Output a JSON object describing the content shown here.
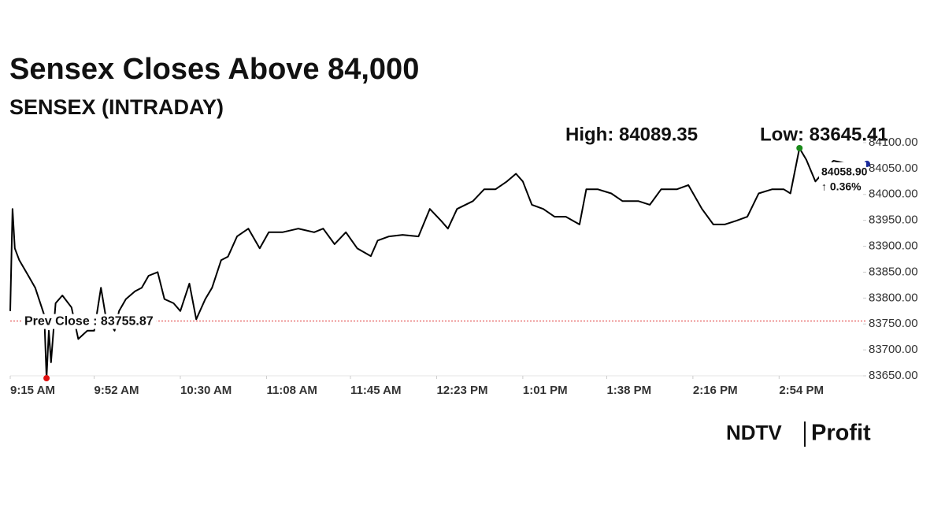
{
  "chart_data": {
    "type": "line",
    "title": "Sensex Closes Above 84,000",
    "subtitle": "SENSEX (INTRADAY)",
    "high": {
      "value": 84089.35,
      "label": "High: 84089.35"
    },
    "low": {
      "value": 83645.41,
      "label": "Low: 83645.41"
    },
    "prev_close": {
      "value": 83755.87,
      "label": "Prev Close : 83755.87"
    },
    "last": {
      "value": 84058.9,
      "label": "84058.90"
    },
    "change": {
      "value": 0.36,
      "label": "↑ 0.36%"
    },
    "color": "#000000",
    "x": [
      0,
      1,
      2,
      4,
      8,
      11,
      15,
      16,
      17,
      18,
      20,
      23,
      27,
      30,
      34,
      37,
      40,
      42,
      46,
      48,
      51,
      55,
      58,
      61,
      65,
      68,
      72,
      75,
      79,
      82,
      86,
      89,
      93,
      96,
      100,
      105,
      110,
      114,
      120,
      127,
      134,
      138,
      143,
      148,
      153,
      159,
      162,
      167,
      173,
      180,
      185,
      190,
      193,
      197,
      204,
      209,
      214,
      219,
      223,
      226,
      230,
      235,
      240,
      245,
      251,
      254,
      259,
      265,
      270,
      277,
      282,
      287,
      294,
      299,
      305,
      310,
      315,
      320,
      325,
      330,
      336,
      341,
      344,
      348,
      351,
      355,
      363,
      369
    ],
    "values": [
      83775,
      83972,
      83896,
      83873,
      83843,
      83820,
      83767,
      83645.41,
      83737,
      83676,
      83790,
      83805,
      83782,
      83721,
      83737,
      83737,
      83820,
      83767,
      83737,
      83775,
      83798,
      83813,
      83820,
      83843,
      83850,
      83798,
      83790,
      83775,
      83828,
      83759,
      83798,
      83820,
      83873,
      83880,
      83919,
      83934,
      83896,
      83927,
      83927,
      83934,
      83927,
      83934,
      83904,
      83927,
      83896,
      83881,
      83911,
      83919,
      83922,
      83919,
      83972,
      83949,
      83934,
      83972,
      83987,
      84010,
      84010,
      84025,
      84040,
      84025,
      83980,
      83972,
      83957,
      83957,
      83942,
      84010,
      84010,
      84002,
      83987,
      83987,
      83980,
      84010,
      84010,
      84018,
      83972,
      83942,
      83942,
      83949,
      83957,
      84002,
      84010,
      84010,
      84002,
      84089.35,
      84067,
      84025,
      84065,
      84058.9
    ],
    "xlim": [
      0,
      375
    ],
    "xticks": [
      {
        "value": 0,
        "label": "9:15 AM"
      },
      {
        "value": 37,
        "label": "9:52 AM"
      },
      {
        "value": 75,
        "label": "10:30 AM"
      },
      {
        "value": 113,
        "label": "11:08 AM"
      },
      {
        "value": 150,
        "label": "11:45 AM"
      },
      {
        "value": 188,
        "label": "12:23 PM"
      },
      {
        "value": 226,
        "label": "1:01 PM"
      },
      {
        "value": 263,
        "label": "1:38 PM"
      },
      {
        "value": 301,
        "label": "2:16 PM"
      },
      {
        "value": 339,
        "label": "2:54 PM"
      }
    ],
    "ylim": [
      83650,
      84100
    ],
    "yticks": [
      {
        "value": 83650,
        "label": "83650.00"
      },
      {
        "value": 83700,
        "label": "83700.00"
      },
      {
        "value": 83750,
        "label": "83750.00"
      },
      {
        "value": 83800,
        "label": "83800.00"
      },
      {
        "value": 83850,
        "label": "83850.00"
      },
      {
        "value": 83900,
        "label": "83900.00"
      },
      {
        "value": 83950,
        "label": "83950.00"
      },
      {
        "value": 84000,
        "label": "84000.00"
      },
      {
        "value": 84050,
        "label": "84050.00"
      },
      {
        "value": 84100,
        "label": "84100.00"
      }
    ],
    "logo": {
      "left": "NDTV",
      "right": "Profit"
    }
  }
}
